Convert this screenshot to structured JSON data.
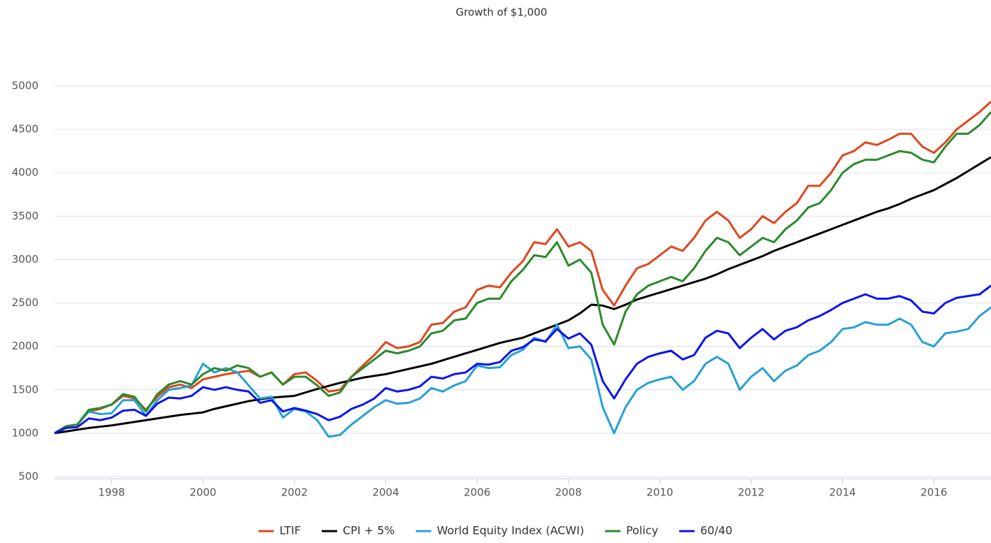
{
  "chart_data": {
    "type": "line",
    "title": "Growth of $1,000",
    "x": [
      1996.75,
      1997,
      1997.25,
      1997.5,
      1997.75,
      1998,
      1998.25,
      1998.5,
      1998.75,
      1999,
      1999.25,
      1999.5,
      1999.75,
      2000,
      2000.25,
      2000.5,
      2000.75,
      2001,
      2001.25,
      2001.5,
      2001.75,
      2002,
      2002.25,
      2002.5,
      2002.75,
      2003,
      2003.25,
      2003.5,
      2003.75,
      2004,
      2004.25,
      2004.5,
      2004.75,
      2005,
      2005.25,
      2005.5,
      2005.75,
      2006,
      2006.25,
      2006.5,
      2006.75,
      2007,
      2007.25,
      2007.5,
      2007.75,
      2008,
      2008.25,
      2008.5,
      2008.75,
      2009,
      2009.25,
      2009.5,
      2009.75,
      2010,
      2010.25,
      2010.5,
      2010.75,
      2011,
      2011.25,
      2011.5,
      2011.75,
      2012,
      2012.25,
      2012.5,
      2012.75,
      2013,
      2013.25,
      2013.5,
      2013.75,
      2014,
      2014.25,
      2014.5,
      2014.75,
      2015,
      2015.25,
      2015.5,
      2015.75,
      2016,
      2016.25,
      2016.5,
      2016.75,
      2017,
      2017.25
    ],
    "series": [
      {
        "name": "LTIF",
        "color": "#e0461e",
        "values": [
          1000,
          1080,
          1100,
          1250,
          1280,
          1330,
          1430,
          1400,
          1270,
          1420,
          1530,
          1560,
          1520,
          1620,
          1650,
          1680,
          1700,
          1720,
          1650,
          1700,
          1560,
          1680,
          1700,
          1600,
          1480,
          1500,
          1650,
          1780,
          1900,
          2050,
          1980,
          2000,
          2050,
          2250,
          2270,
          2400,
          2450,
          2650,
          2700,
          2680,
          2850,
          2980,
          3200,
          3180,
          3350,
          3150,
          3200,
          3100,
          2650,
          2470,
          2700,
          2900,
          2950,
          3050,
          3150,
          3100,
          3250,
          3450,
          3550,
          3450,
          3250,
          3350,
          3500,
          3420,
          3550,
          3650,
          3850,
          3850,
          4000,
          4200,
          4250,
          4350,
          4320,
          4380,
          4450,
          4450,
          4300,
          4230,
          4350,
          4500,
          4600,
          4700,
          4820
        ]
      },
      {
        "name": "CPI + 5%",
        "color": "#000000",
        "values": [
          1000,
          1020,
          1040,
          1060,
          1075,
          1090,
          1110,
          1130,
          1150,
          1170,
          1190,
          1210,
          1225,
          1240,
          1280,
          1310,
          1340,
          1370,
          1390,
          1410,
          1420,
          1430,
          1470,
          1510,
          1545,
          1580,
          1610,
          1640,
          1660,
          1680,
          1710,
          1740,
          1770,
          1800,
          1840,
          1880,
          1920,
          1960,
          2000,
          2040,
          2070,
          2100,
          2150,
          2200,
          2250,
          2300,
          2380,
          2480,
          2470,
          2430,
          2480,
          2540,
          2580,
          2620,
          2660,
          2700,
          2740,
          2780,
          2830,
          2890,
          2940,
          2990,
          3040,
          3100,
          3150,
          3200,
          3250,
          3300,
          3350,
          3400,
          3450,
          3500,
          3550,
          3590,
          3640,
          3700,
          3750,
          3800,
          3870,
          3940,
          4020,
          4100,
          4180
        ]
      },
      {
        "name": "World Equity Index (ACWI)",
        "color": "#26a0d6",
        "values": [
          1000,
          1080,
          1100,
          1250,
          1220,
          1230,
          1380,
          1380,
          1200,
          1380,
          1500,
          1520,
          1550,
          1800,
          1700,
          1750,
          1700,
          1550,
          1400,
          1420,
          1180,
          1280,
          1250,
          1150,
          960,
          980,
          1100,
          1200,
          1300,
          1380,
          1340,
          1350,
          1400,
          1520,
          1480,
          1550,
          1600,
          1780,
          1750,
          1760,
          1900,
          1960,
          2100,
          2050,
          2250,
          1980,
          2000,
          1850,
          1300,
          1000,
          1300,
          1500,
          1580,
          1620,
          1650,
          1500,
          1600,
          1800,
          1880,
          1800,
          1500,
          1650,
          1750,
          1600,
          1720,
          1780,
          1900,
          1950,
          2050,
          2200,
          2220,
          2280,
          2250,
          2250,
          2320,
          2250,
          2050,
          2000,
          2150,
          2170,
          2200,
          2350,
          2450
        ]
      },
      {
        "name": "Policy",
        "color": "#2a8a2a",
        "values": [
          1000,
          1080,
          1100,
          1270,
          1290,
          1330,
          1450,
          1420,
          1250,
          1450,
          1560,
          1600,
          1560,
          1680,
          1750,
          1720,
          1780,
          1750,
          1650,
          1700,
          1560,
          1650,
          1650,
          1550,
          1430,
          1470,
          1650,
          1750,
          1850,
          1950,
          1920,
          1950,
          2000,
          2150,
          2180,
          2300,
          2320,
          2500,
          2550,
          2550,
          2750,
          2880,
          3050,
          3030,
          3200,
          2930,
          3000,
          2850,
          2250,
          2020,
          2400,
          2600,
          2700,
          2750,
          2800,
          2750,
          2900,
          3100,
          3250,
          3200,
          3050,
          3150,
          3250,
          3200,
          3350,
          3450,
          3600,
          3650,
          3800,
          4000,
          4100,
          4150,
          4150,
          4200,
          4250,
          4230,
          4150,
          4120,
          4300,
          4450,
          4450,
          4550,
          4700
        ]
      },
      {
        "name": "60/40",
        "color": "#0a14f0",
        "values": [
          1000,
          1060,
          1070,
          1170,
          1150,
          1180,
          1260,
          1270,
          1200,
          1340,
          1410,
          1400,
          1430,
          1530,
          1500,
          1530,
          1500,
          1480,
          1350,
          1380,
          1250,
          1290,
          1260,
          1220,
          1150,
          1190,
          1280,
          1330,
          1400,
          1520,
          1480,
          1500,
          1540,
          1650,
          1630,
          1680,
          1700,
          1800,
          1790,
          1820,
          1950,
          1990,
          2080,
          2060,
          2200,
          2090,
          2150,
          2020,
          1600,
          1400,
          1620,
          1800,
          1880,
          1920,
          1950,
          1850,
          1900,
          2100,
          2180,
          2150,
          1980,
          2100,
          2200,
          2080,
          2180,
          2220,
          2300,
          2350,
          2420,
          2500,
          2550,
          2600,
          2550,
          2550,
          2580,
          2530,
          2400,
          2380,
          2500,
          2560,
          2580,
          2600,
          2700
        ]
      }
    ],
    "xlim": [
      1996.75,
      2017.25
    ],
    "xticks": [
      1998,
      2000,
      2002,
      2004,
      2006,
      2008,
      2010,
      2012,
      2014,
      2016
    ],
    "ylim": [
      500,
      5500
    ],
    "yticks": [
      500,
      1000,
      1500,
      2000,
      2500,
      3000,
      3500,
      4000,
      4500,
      5000
    ],
    "grid": true,
    "legend": "bottom"
  }
}
